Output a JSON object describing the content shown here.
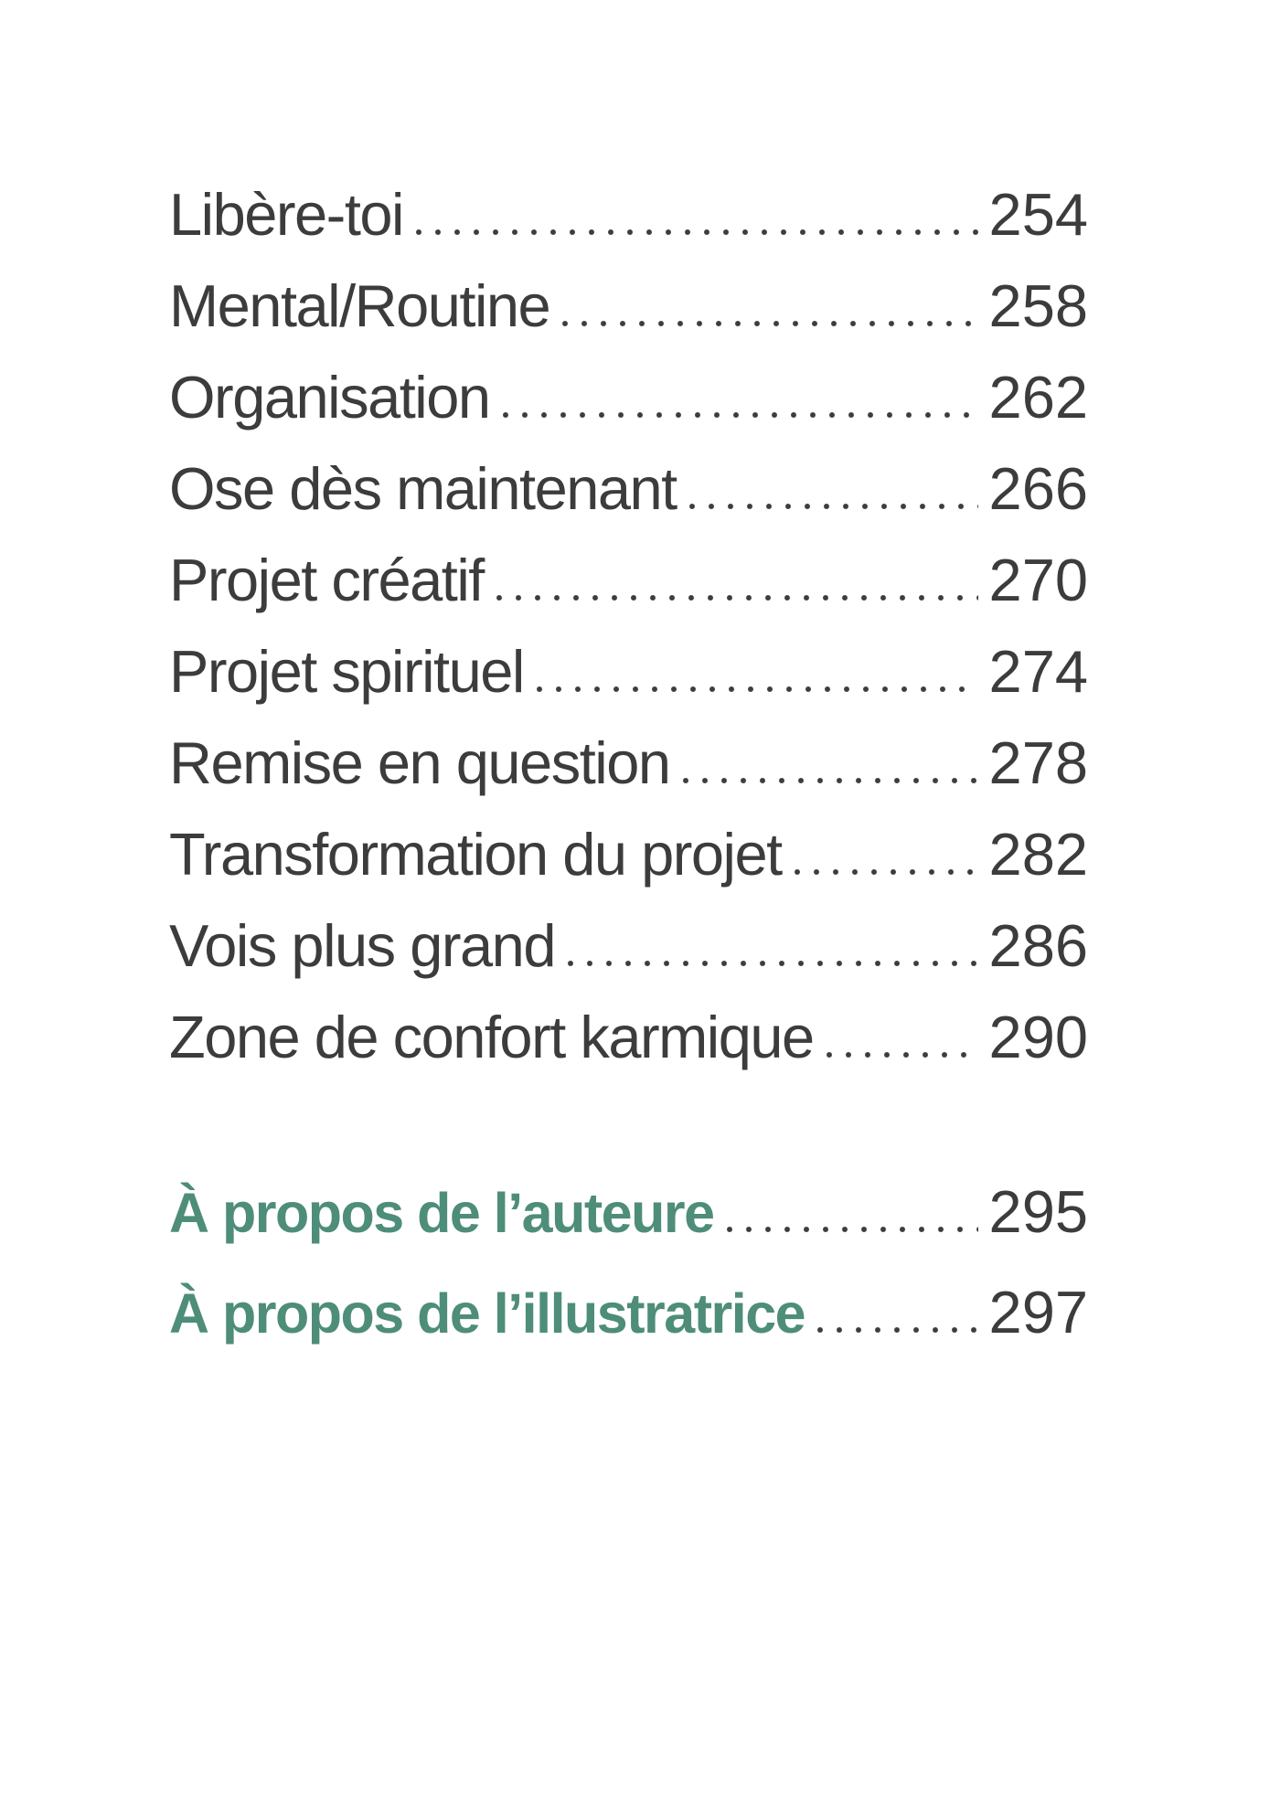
{
  "page": {
    "background": "#ffffff",
    "text_color": "#3c3c3c",
    "dot_color": "#3d3d3d",
    "accent_color": "#4e8d79"
  },
  "toc": {
    "chapters": [
      {
        "title": "Libère-toi",
        "page": "254"
      },
      {
        "title": "Mental/Routine",
        "page": "258"
      },
      {
        "title": "Organisation",
        "page": "262"
      },
      {
        "title": "Ose dès maintenant",
        "page": "266"
      },
      {
        "title": "Projet créatif",
        "page": "270"
      },
      {
        "title": "Projet spirituel",
        "page": "274"
      },
      {
        "title": "Remise en question",
        "page": "278"
      },
      {
        "title": "Transformation du projet",
        "page": "282"
      },
      {
        "title": "Vois plus grand",
        "page": "286"
      },
      {
        "title": "Zone de confort karmique",
        "page": "290"
      }
    ],
    "about": [
      {
        "title": "À propos de l’auteure",
        "page": "295"
      },
      {
        "title": "À propos de l’illustratrice",
        "page": "297"
      }
    ]
  }
}
